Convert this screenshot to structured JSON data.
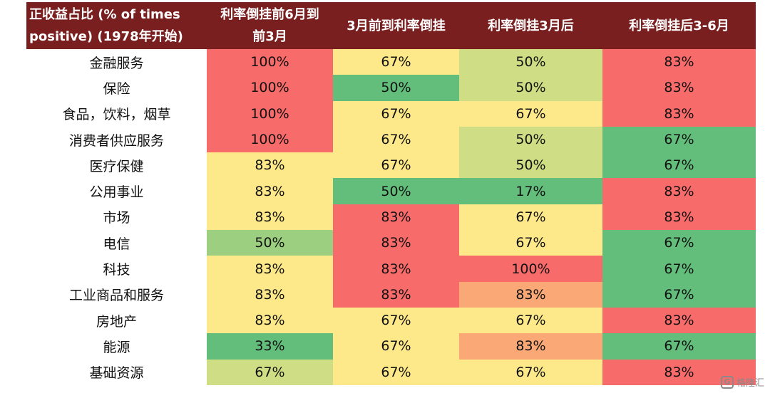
{
  "chart_data": {
    "type": "heatmap",
    "corner_label": [
      "正收益占比 (% of times",
      "positive) (1978年开始)"
    ],
    "columns": [
      [
        "利率倒挂前6月到",
        "前3月"
      ],
      [
        "3月前到利率倒挂"
      ],
      [
        "利率倒挂3月后"
      ],
      [
        "利率倒挂后3-6月"
      ]
    ],
    "rows": [
      "金融服务",
      "保险",
      "食品，饮料，烟草",
      "消费者供应服务",
      "医疗保健",
      "公用事业",
      "市场",
      "电信",
      "科技",
      "工业商品和服务",
      "房地产",
      "能源",
      "基础资源"
    ],
    "values": [
      [
        "100%",
        "67%",
        "50%",
        "83%"
      ],
      [
        "100%",
        "50%",
        "50%",
        "83%"
      ],
      [
        "100%",
        "67%",
        "67%",
        "83%"
      ],
      [
        "100%",
        "67%",
        "50%",
        "67%"
      ],
      [
        "83%",
        "67%",
        "50%",
        "67%"
      ],
      [
        "83%",
        "50%",
        "17%",
        "83%"
      ],
      [
        "83%",
        "83%",
        "67%",
        "83%"
      ],
      [
        "50%",
        "83%",
        "67%",
        "67%"
      ],
      [
        "83%",
        "83%",
        "100%",
        "67%"
      ],
      [
        "83%",
        "83%",
        "83%",
        "67%"
      ],
      [
        "83%",
        "67%",
        "67%",
        "83%"
      ],
      [
        "33%",
        "67%",
        "83%",
        "67%"
      ],
      [
        "67%",
        "67%",
        "67%",
        "83%"
      ]
    ],
    "cell_colors": [
      [
        "#f86b6b",
        "#fde98a",
        "#cfdd84",
        "#f86b6b"
      ],
      [
        "#f86b6b",
        "#63bd7b",
        "#cfdd84",
        "#f86b6b"
      ],
      [
        "#f86b6b",
        "#fde98a",
        "#fde98a",
        "#f86b6b"
      ],
      [
        "#f86b6b",
        "#fde98a",
        "#cfdd84",
        "#63bd7b"
      ],
      [
        "#fde98a",
        "#fde98a",
        "#cfdd84",
        "#63bd7b"
      ],
      [
        "#fde98a",
        "#63bd7b",
        "#63bd7b",
        "#f86b6b"
      ],
      [
        "#fde98a",
        "#f86b6b",
        "#fde98a",
        "#f86b6b"
      ],
      [
        "#9ccf7f",
        "#f86b6b",
        "#fde98a",
        "#63bd7b"
      ],
      [
        "#fde98a",
        "#f86b6b",
        "#f86b6b",
        "#63bd7b"
      ],
      [
        "#fde98a",
        "#f86b6b",
        "#fba877",
        "#63bd7b"
      ],
      [
        "#fde98a",
        "#fde98a",
        "#fde98a",
        "#f86b6b"
      ],
      [
        "#63bd7b",
        "#fde98a",
        "#fba877",
        "#63bd7b"
      ],
      [
        "#cfdd84",
        "#fde98a",
        "#fde98a",
        "#f86b6b"
      ]
    ],
    "header_color": "#7a1f1f"
  },
  "watermark": {
    "logo_text": "G",
    "text": "格隆汇"
  }
}
